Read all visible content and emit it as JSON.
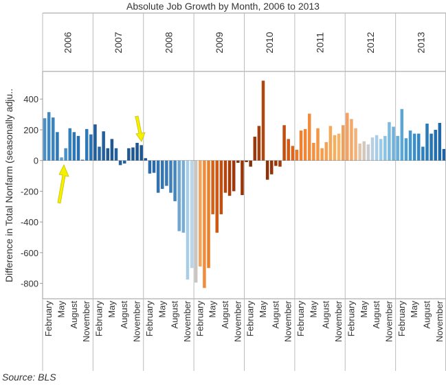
{
  "title": "Absolute Job Growth by Month, 2006 to 2013",
  "source": "Source: BLS",
  "chart_data": {
    "type": "bar",
    "ylabel": "Difference in Total Nonfarm (seasonally adju..",
    "ylim": [
      -900,
      580
    ],
    "yticks": [
      400,
      200,
      0,
      -200,
      -400,
      -600,
      -800
    ],
    "grid": false,
    "month_tick_labels": [
      "February",
      "May",
      "August",
      "November"
    ],
    "month_tick_index": [
      1,
      4,
      7,
      10
    ],
    "annotations": [
      "yellow-arrow-up",
      "yellow-arrow-down"
    ],
    "years": [
      {
        "year": "2006",
        "values": [
          275,
          315,
          280,
          185,
          20,
          80,
          210,
          185,
          160,
          5,
          205,
          170
        ]
      },
      {
        "year": "2007",
        "values": [
          235,
          90,
          190,
          80,
          140,
          80,
          -30,
          -20,
          80,
          85,
          115,
          100
        ]
      },
      {
        "year": "2008",
        "values": [
          15,
          -85,
          -80,
          -210,
          -185,
          -165,
          -210,
          -265,
          -460,
          -470,
          -775,
          -700
        ]
      },
      {
        "year": "2009",
        "values": [
          -795,
          -690,
          -830,
          -700,
          -350,
          -470,
          -350,
          -210,
          -230,
          -200,
          -15,
          -225
        ]
      },
      {
        "year": "2010",
        "values": [
          -10,
          -40,
          155,
          225,
          520,
          -125,
          -90,
          -35,
          -40,
          230,
          140,
          95
        ]
      },
      {
        "year": "2011",
        "values": [
          70,
          195,
          205,
          305,
          115,
          210,
          80,
          120,
          225,
          165,
          175,
          230
        ]
      },
      {
        "year": "2012",
        "values": [
          310,
          270,
          210,
          110,
          125,
          105,
          150,
          165,
          140,
          160,
          250,
          220
        ]
      },
      {
        "year": "2013",
        "values": [
          160,
          335,
          145,
          195,
          175,
          175,
          90,
          240,
          175,
          200,
          245,
          75
        ]
      }
    ]
  }
}
